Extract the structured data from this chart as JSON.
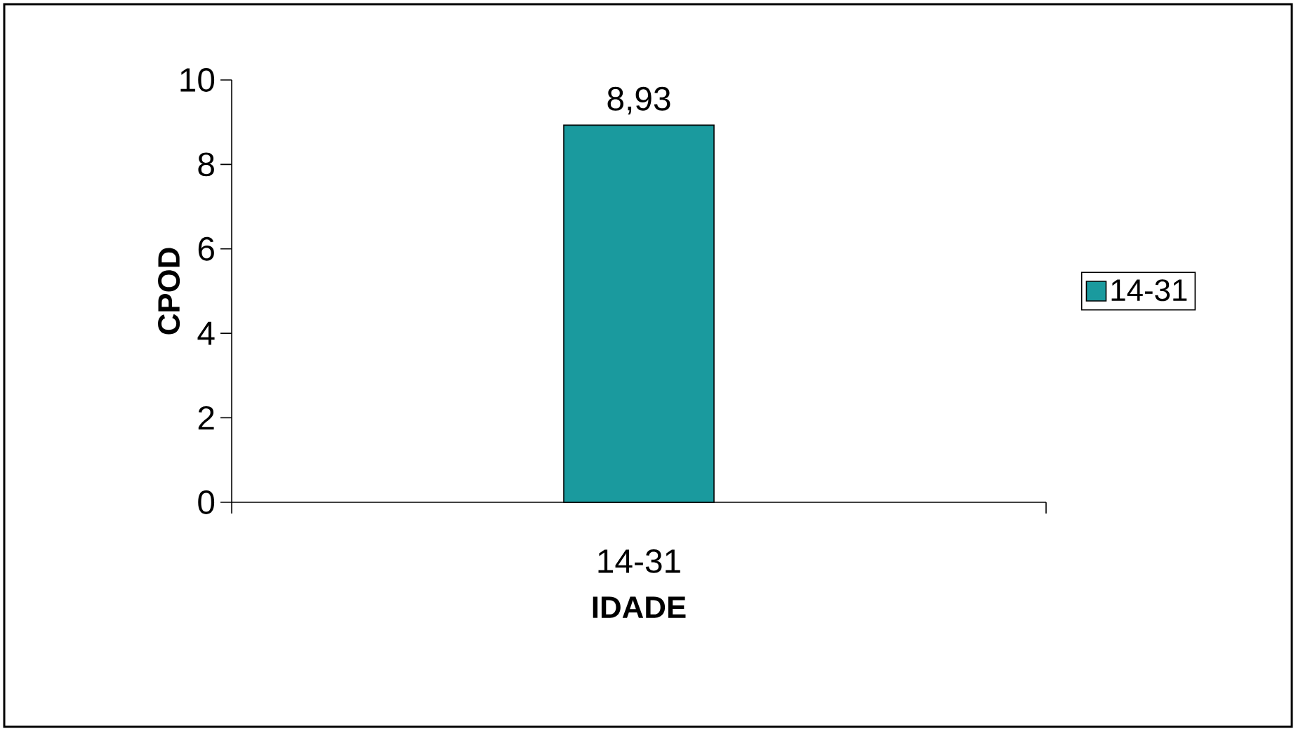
{
  "chart_data": {
    "type": "bar",
    "xlabel": "IDADE",
    "ylabel": "CPOD",
    "categories": [
      "14-31"
    ],
    "series": [
      {
        "name": "14-31",
        "color": "#1a9a9e",
        "values": [
          8.93
        ],
        "value_labels": [
          "8,93"
        ]
      }
    ],
    "ylim": [
      0,
      10
    ],
    "yticks": [
      0,
      2,
      4,
      6,
      8,
      10
    ],
    "legend": "right"
  }
}
